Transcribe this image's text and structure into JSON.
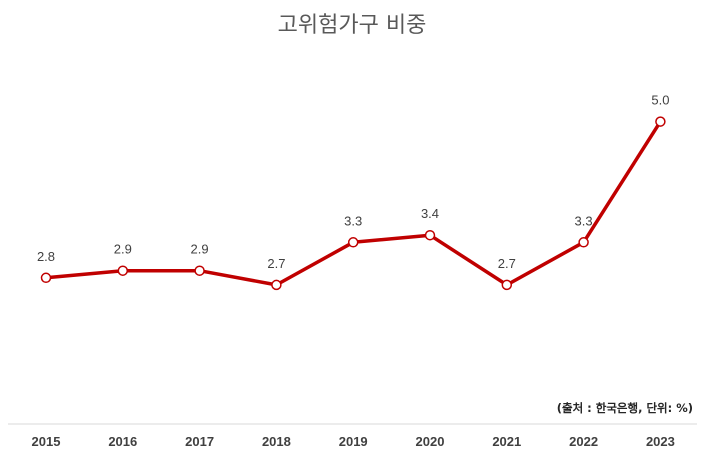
{
  "chart_data": {
    "type": "line",
    "title": "고위험가구 비중",
    "source_note": "(출처 : 한국은행, 단위: %)",
    "categories": [
      "2015",
      "2016",
      "2017",
      "2018",
      "2019",
      "2020",
      "2021",
      "2022",
      "2023"
    ],
    "series": [
      {
        "values": [
          2.8,
          2.9,
          2.9,
          2.7,
          3.3,
          3.4,
          2.7,
          3.3,
          5.0
        ],
        "labels": [
          "2.8",
          "2.9",
          "2.9",
          "2.7",
          "3.3",
          "3.4",
          "2.7",
          "3.3",
          "5.0"
        ],
        "color": "#c00000",
        "marker_fill": "#ffffff"
      }
    ],
    "xlabel": "",
    "ylabel": "",
    "ylim": [
      0,
      6
    ],
    "grid": false,
    "legend": "none",
    "axis_line_color": "#d9d9d9",
    "text_color": "#404040"
  }
}
